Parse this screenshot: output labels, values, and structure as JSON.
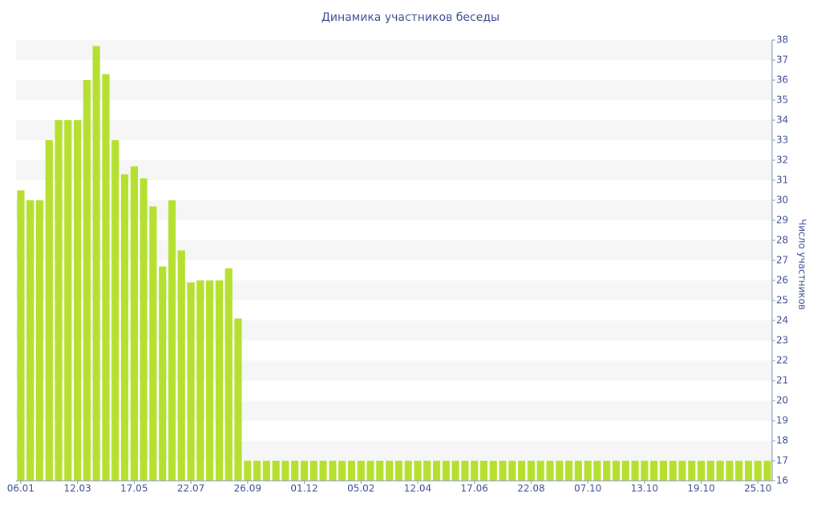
{
  "chart_data": {
    "type": "bar",
    "title": "Динамика участников беседы",
    "y_label": "Число участников",
    "categories": [
      "06.01",
      null,
      null,
      null,
      null,
      null,
      "12.03",
      null,
      null,
      null,
      null,
      null,
      "17.05",
      null,
      null,
      null,
      null,
      null,
      "22.07",
      null,
      null,
      null,
      null,
      null,
      "26.09",
      null,
      null,
      null,
      null,
      null,
      "01.12",
      null,
      null,
      null,
      null,
      null,
      "05.02",
      null,
      null,
      null,
      null,
      null,
      "12.04",
      null,
      null,
      null,
      null,
      null,
      "17.06",
      null,
      null,
      null,
      null,
      null,
      "22.08",
      null,
      null,
      null,
      null,
      null,
      "07.10",
      null,
      null,
      null,
      null,
      null,
      "13.10",
      null,
      null,
      null,
      null,
      null,
      "19.10",
      null,
      null,
      null,
      null,
      null,
      "25.10",
      null
    ],
    "values": [
      30.5,
      30,
      30,
      33,
      34,
      34,
      34,
      36,
      37.7,
      36.3,
      33,
      31.3,
      31.7,
      31.1,
      29.7,
      26.7,
      30,
      27.5,
      25.9,
      26,
      26,
      26,
      26.6,
      24.1,
      17,
      17,
      17,
      17,
      17,
      17,
      17,
      17,
      17,
      17,
      17,
      17,
      17,
      17,
      17,
      17,
      17,
      17,
      17,
      17,
      17,
      17,
      17,
      17,
      17,
      17,
      17,
      17,
      17,
      17,
      17,
      17,
      17,
      17,
      17,
      17,
      17,
      17,
      17,
      17,
      17,
      17,
      17,
      17,
      17,
      17,
      17,
      17,
      17,
      17,
      17,
      17,
      17,
      17,
      17,
      17
    ],
    "color": "#b5e02f",
    "ylim": [
      16,
      38
    ],
    "yticks": [
      16,
      17,
      18,
      19,
      20,
      21,
      22,
      23,
      24,
      25,
      26,
      27,
      28,
      29,
      30,
      31,
      32,
      33,
      34,
      35,
      36,
      37,
      38
    ],
    "grid": true
  }
}
